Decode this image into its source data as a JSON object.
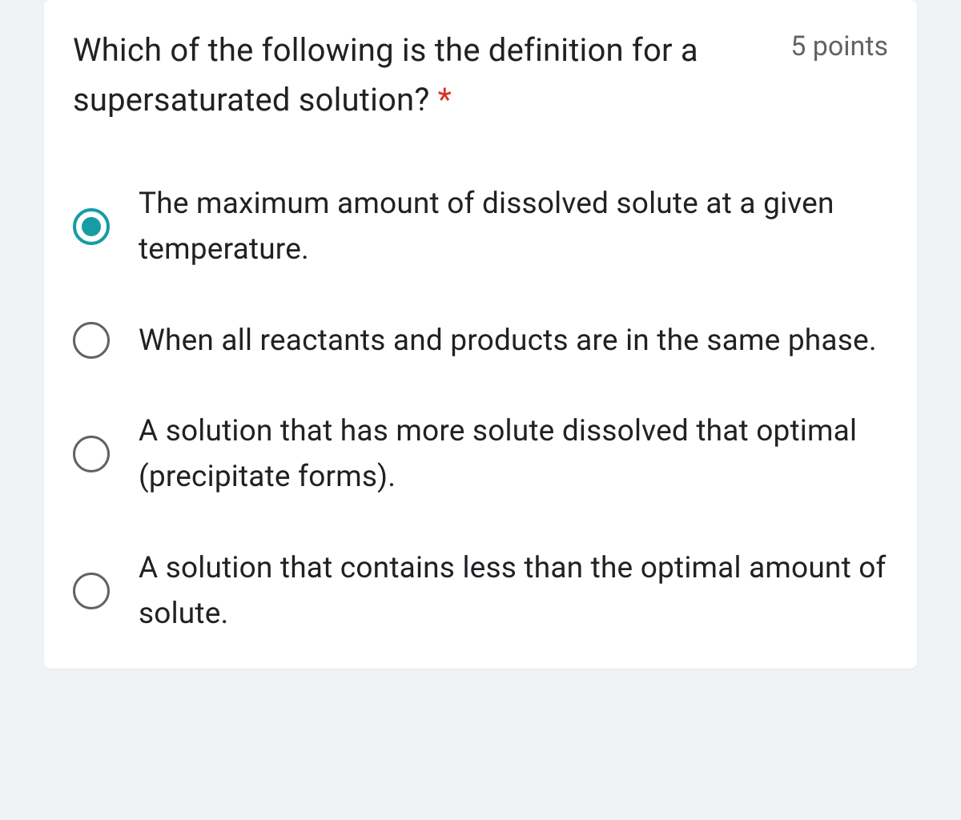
{
  "question": {
    "text": "Which of the following is the definition for a supersaturated solution?",
    "required_marker": "*",
    "points_label": "5 points"
  },
  "options": [
    {
      "text": "The maximum amount of dissolved solute at a given temperature.",
      "selected": true
    },
    {
      "text": "When all reactants and products are in the same phase.",
      "selected": false
    },
    {
      "text": "A solution that has more solute dissolved that optimal (precipitate forms).",
      "selected": false
    },
    {
      "text": "A solution that contains less than the optimal amount of solute.",
      "selected": false
    }
  ],
  "colors": {
    "background": "#f0f3f5",
    "card_background": "#ffffff",
    "text_primary": "#202124",
    "text_secondary": "#5f6368",
    "required": "#d93025",
    "accent": "#179ca5"
  }
}
